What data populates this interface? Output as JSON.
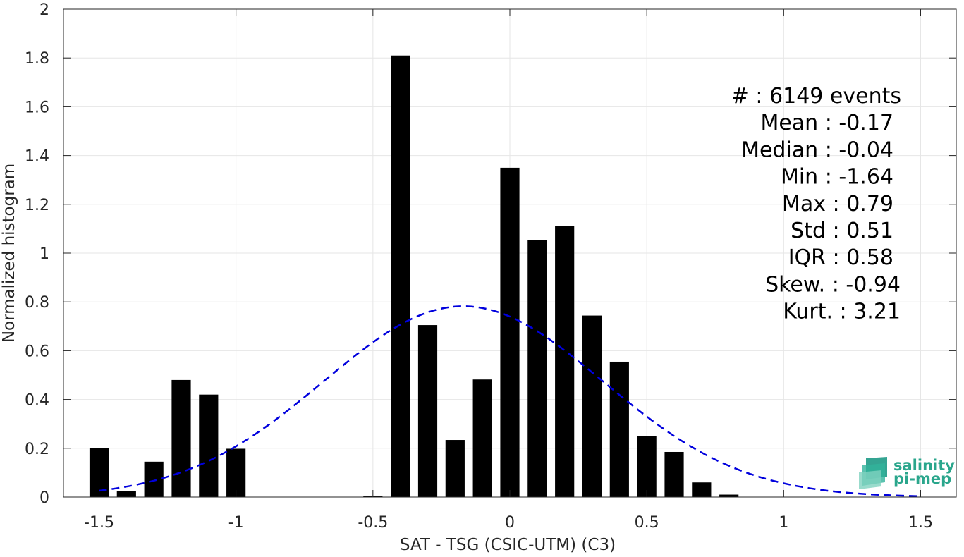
{
  "chart_data": {
    "type": "bar",
    "xlabel": "SAT - TSG (CSIC-UTM) (C3)",
    "ylabel": "Normalized histogram",
    "xlim": [
      -1.63,
      1.63
    ],
    "ylim": [
      0,
      2
    ],
    "xticks": [
      -1.5,
      -1,
      -0.5,
      0,
      0.5,
      1,
      1.5
    ],
    "xtick_labels": [
      "-1.5",
      "-1",
      "-0.5",
      "0",
      "0.5",
      "1",
      "1.5"
    ],
    "yticks": [
      0,
      0.2,
      0.4,
      0.6,
      0.8,
      1,
      1.2,
      1.4,
      1.6,
      1.8,
      2
    ],
    "ytick_labels": [
      "0",
      "0.2",
      "0.4",
      "0.6",
      "0.8",
      "1",
      "1.2",
      "1.4",
      "1.6",
      "1.8",
      "2"
    ],
    "grid": true,
    "bar_width": 0.07,
    "bar_color": "#000000",
    "bars": [
      {
        "x": -1.5,
        "y": 0.2
      },
      {
        "x": -1.4,
        "y": 0.025
      },
      {
        "x": -1.3,
        "y": 0.145
      },
      {
        "x": -1.2,
        "y": 0.48
      },
      {
        "x": -1.1,
        "y": 0.42
      },
      {
        "x": -1.0,
        "y": 0.198
      },
      {
        "x": -0.9,
        "y": 0
      },
      {
        "x": -0.8,
        "y": 0
      },
      {
        "x": -0.7,
        "y": 0
      },
      {
        "x": -0.6,
        "y": 0
      },
      {
        "x": -0.5,
        "y": 0.003
      },
      {
        "x": -0.4,
        "y": 1.81
      },
      {
        "x": -0.3,
        "y": 0.705
      },
      {
        "x": -0.2,
        "y": 0.234
      },
      {
        "x": -0.1,
        "y": 0.482
      },
      {
        "x": 0.0,
        "y": 1.35
      },
      {
        "x": 0.1,
        "y": 1.053
      },
      {
        "x": 0.2,
        "y": 1.112
      },
      {
        "x": 0.3,
        "y": 0.744
      },
      {
        "x": 0.4,
        "y": 0.555
      },
      {
        "x": 0.5,
        "y": 0.25
      },
      {
        "x": 0.6,
        "y": 0.185
      },
      {
        "x": 0.7,
        "y": 0.06
      },
      {
        "x": 0.8,
        "y": 0.01
      }
    ],
    "fit_curve": {
      "style": "dashed",
      "color": "#0000dd",
      "mean": -0.17,
      "std": 0.51,
      "x_range": [
        -1.5,
        1.5
      ]
    },
    "stats": [
      "#  : 6149 events",
      "Mean : -0.17",
      "Median : -0.04",
      "Min : -1.64",
      "Max : 0.79",
      "Std : 0.51",
      "IQR : 0.58",
      "Skew. : -0.94",
      "Kurt. : 3.21"
    ]
  },
  "logo": {
    "line1": "salinity",
    "line2": "pi-mep",
    "color": "#2aa68c"
  }
}
